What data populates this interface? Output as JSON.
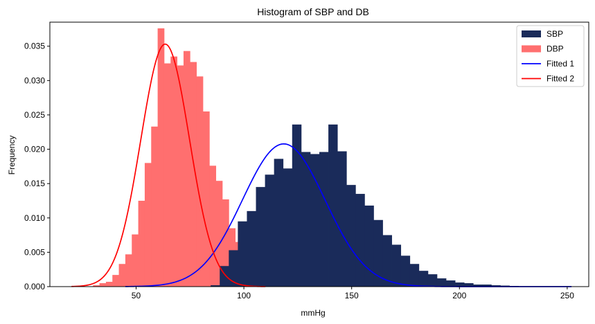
{
  "chart_data": {
    "type": "bar",
    "title": "Histogram of SBP and DB",
    "xlabel": "mmHg",
    "ylabel": "Frequency",
    "xlim": [
      10,
      260
    ],
    "ylim": [
      0,
      0.0385
    ],
    "xticks": [
      50,
      100,
      150,
      200,
      250
    ],
    "yticks": [
      0.0,
      0.005,
      0.01,
      0.015,
      0.02,
      0.025,
      0.03,
      0.035
    ],
    "ytick_labels": [
      "0.000",
      "0.005",
      "0.010",
      "0.015",
      "0.020",
      "0.025",
      "0.030",
      "0.035"
    ],
    "legend_position": "top-right",
    "series": [
      {
        "name": "SBP",
        "kind": "histogram",
        "color": "#1a2b5a",
        "bin_width": 4.2,
        "bin_start": 84.6,
        "values": [
          0.0002,
          0.003,
          0.0053,
          0.0095,
          0.011,
          0.0145,
          0.0163,
          0.0186,
          0.0172,
          0.0236,
          0.0196,
          0.0193,
          0.0196,
          0.0236,
          0.0197,
          0.0148,
          0.0135,
          0.0118,
          0.0097,
          0.0075,
          0.0061,
          0.0045,
          0.0033,
          0.0023,
          0.0018,
          0.0012,
          0.0009,
          0.0006,
          0.0005,
          0.0003,
          0.0003,
          0.0002,
          0.00015,
          0.0001
        ]
      },
      {
        "name": "DBP",
        "kind": "histogram",
        "color": "#ff6f6f",
        "bin_width": 3.0,
        "bin_start": 30.0,
        "values": [
          0.0002,
          0.0005,
          0.0007,
          0.0017,
          0.0033,
          0.0047,
          0.0076,
          0.0125,
          0.018,
          0.0233,
          0.0376,
          0.0325,
          0.0335,
          0.0322,
          0.0343,
          0.0327,
          0.0306,
          0.0255,
          0.0176,
          0.0154,
          0.0127,
          0.0085,
          0.0065,
          0.0041,
          0.003,
          0.0018,
          0.0012,
          0.0006,
          0.0004,
          0.0002
        ]
      },
      {
        "name": "Fitted 1",
        "kind": "normal_pdf",
        "color": "#0000ff",
        "mean": 118.5,
        "std": 19.2,
        "x_range": [
          45,
          252
        ]
      },
      {
        "name": "Fitted 2",
        "kind": "normal_pdf",
        "color": "#ff0000",
        "mean": 63.5,
        "std": 11.3,
        "x_range": [
          20,
          110
        ]
      }
    ]
  }
}
